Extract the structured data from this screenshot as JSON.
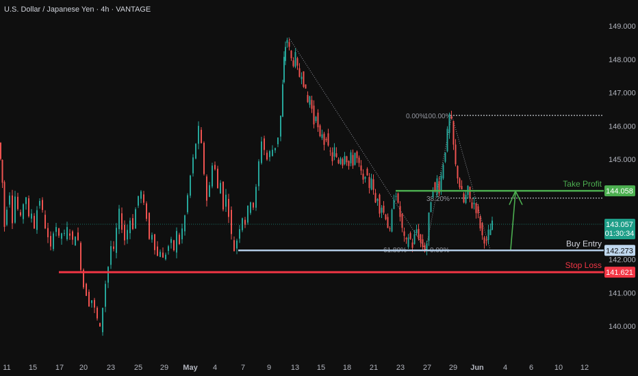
{
  "header": {
    "title": "U.S. Dollar / Japanese Yen · 4h · VANTAGE"
  },
  "colors": {
    "background": "#0f0f0f",
    "up": "#26a69a",
    "down": "#ef5350",
    "take_profit": "#4caf50",
    "buy_entry": "#b3cde8",
    "stop_loss": "#f23645",
    "current_price": "#1e9e88"
  },
  "chart_data": {
    "type": "candlestick",
    "title": "U.S. Dollar / Japanese Yen · 4h · VANTAGE",
    "y_axis": {
      "ticks": [
        "149.000",
        "148.000",
        "147.000",
        "146.000",
        "145.000",
        "142.000",
        "141.000",
        "140.000"
      ],
      "tick_values": [
        149,
        148,
        147,
        146,
        145,
        142,
        141,
        140
      ],
      "ylim": [
        139.0,
        149.6
      ]
    },
    "x_axis": {
      "ticks": [
        "11",
        "15",
        "17",
        "20",
        "23",
        "25",
        "29",
        "May",
        "4",
        "7",
        "9",
        "13",
        "15",
        "18",
        "21",
        "23",
        "27",
        "29",
        "Jun",
        "4",
        "6",
        "10",
        "12"
      ]
    },
    "levels": {
      "take_profit": {
        "label": "Take Profit",
        "value": 144.058,
        "tag": "144.058"
      },
      "buy_entry": {
        "label": "Buy Entry",
        "value": 142.273,
        "tag": "142.273"
      },
      "stop_loss": {
        "label": "Stop Loss",
        "value": 141.621,
        "tag": "141.621"
      },
      "current": {
        "value": 143.057,
        "tag": "143.057",
        "countdown": "01:30:34"
      }
    },
    "fibonacci": [
      {
        "label": "0.00%",
        "value": 146.32
      },
      {
        "label": "100.00%",
        "value": 146.32
      },
      {
        "label": "38.20%",
        "value": 143.84
      },
      {
        "label": "61.80%",
        "value": 142.3
      },
      {
        "label": "0.00%",
        "value": 142.3
      }
    ],
    "price_path": [
      [
        0,
        145.5
      ],
      [
        2,
        145.0
      ],
      [
        5,
        144.3
      ],
      [
        8,
        143.0
      ],
      [
        12,
        143.6
      ],
      [
        16,
        144.0
      ],
      [
        20,
        143.2
      ],
      [
        24,
        143.9
      ],
      [
        28,
        143.5
      ],
      [
        32,
        143.2
      ],
      [
        36,
        143.7
      ],
      [
        40,
        143.9
      ],
      [
        44,
        143.2
      ],
      [
        48,
        143.4
      ],
      [
        52,
        143.0
      ],
      [
        56,
        143.5
      ],
      [
        60,
        143.8
      ],
      [
        64,
        143.4
      ],
      [
        68,
        143.0
      ],
      [
        72,
        142.6
      ],
      [
        76,
        142.3
      ],
      [
        80,
        142.9
      ],
      [
        84,
        143.0
      ],
      [
        88,
        142.6
      ],
      [
        92,
        142.8
      ],
      [
        96,
        142.7
      ],
      [
        100,
        142.9
      ],
      [
        104,
        142.8
      ],
      [
        108,
        142.5
      ],
      [
        112,
        142.8
      ],
      [
        116,
        142.5
      ],
      [
        120,
        141.8
      ],
      [
        124,
        141.2
      ],
      [
        128,
        141.0
      ],
      [
        132,
        140.7
      ],
      [
        136,
        140.8
      ],
      [
        140,
        140.5
      ],
      [
        144,
        140.2
      ],
      [
        148,
        139.9
      ],
      [
        152,
        140.6
      ],
      [
        156,
        141.3
      ],
      [
        160,
        141.8
      ],
      [
        164,
        142.4
      ],
      [
        168,
        142.2
      ],
      [
        172,
        142.9
      ],
      [
        176,
        143.4
      ],
      [
        180,
        143.0
      ],
      [
        184,
        142.6
      ],
      [
        188,
        142.9
      ],
      [
        192,
        143.2
      ],
      [
        196,
        143.0
      ],
      [
        200,
        143.5
      ],
      [
        204,
        143.9
      ],
      [
        208,
        144.0
      ],
      [
        212,
        143.6
      ],
      [
        216,
        143.3
      ],
      [
        220,
        142.6
      ],
      [
        224,
        142.8
      ],
      [
        228,
        142.4
      ],
      [
        232,
        142.1
      ],
      [
        236,
        142.3
      ],
      [
        240,
        142.0
      ],
      [
        244,
        142.2
      ],
      [
        248,
        142.4
      ],
      [
        252,
        142.5
      ],
      [
        256,
        142.3
      ],
      [
        260,
        142.8
      ],
      [
        264,
        142.5
      ],
      [
        268,
        142.9
      ],
      [
        272,
        143.3
      ],
      [
        276,
        143.9
      ],
      [
        280,
        144.5
      ],
      [
        284,
        145.0
      ],
      [
        288,
        145.5
      ],
      [
        292,
        145.9
      ],
      [
        296,
        145.4
      ],
      [
        300,
        144.6
      ],
      [
        304,
        143.8
      ],
      [
        308,
        144.2
      ],
      [
        312,
        144.9
      ],
      [
        316,
        144.7
      ],
      [
        320,
        144.1
      ],
      [
        324,
        144.3
      ],
      [
        328,
        143.6
      ],
      [
        332,
        143.9
      ],
      [
        336,
        143.4
      ],
      [
        340,
        142.7
      ],
      [
        344,
        142.3
      ],
      [
        348,
        142.6
      ],
      [
        352,
        143.0
      ],
      [
        356,
        143.3
      ],
      [
        360,
        143.1
      ],
      [
        364,
        143.5
      ],
      [
        368,
        143.8
      ],
      [
        372,
        143.6
      ],
      [
        376,
        144.1
      ],
      [
        380,
        144.9
      ],
      [
        384,
        145.6
      ],
      [
        388,
        145.3
      ],
      [
        392,
        145.0
      ],
      [
        396,
        145.2
      ],
      [
        400,
        145.3
      ],
      [
        404,
        145.4
      ],
      [
        408,
        145.7
      ],
      [
        412,
        146.3
      ],
      [
        414,
        147.2
      ],
      [
        416,
        148.0
      ],
      [
        418,
        148.4
      ],
      [
        421,
        148.6
      ],
      [
        424,
        148.3
      ],
      [
        427,
        148.0
      ],
      [
        430,
        147.9
      ],
      [
        433,
        148.1
      ],
      [
        436,
        147.7
      ],
      [
        439,
        147.5
      ],
      [
        442,
        147.6
      ],
      [
        445,
        147.3
      ],
      [
        448,
        147.0
      ],
      [
        451,
        146.7
      ],
      [
        454,
        146.9
      ],
      [
        457,
        146.5
      ],
      [
        460,
        146.1
      ],
      [
        463,
        146.4
      ],
      [
        466,
        145.9
      ],
      [
        469,
        145.6
      ],
      [
        472,
        145.8
      ],
      [
        475,
        145.5
      ],
      [
        478,
        145.7
      ],
      [
        481,
        145.3
      ],
      [
        484,
        145.2
      ],
      [
        487,
        145.0
      ],
      [
        490,
        145.3
      ],
      [
        493,
        145.0
      ],
      [
        496,
        144.9
      ],
      [
        499,
        145.1
      ],
      [
        502,
        144.9
      ],
      [
        505,
        145.2
      ],
      [
        508,
        145.0
      ],
      [
        511,
        144.8
      ],
      [
        514,
        145.1
      ],
      [
        517,
        144.9
      ],
      [
        520,
        145.2
      ],
      [
        523,
        145.0
      ],
      [
        526,
        144.8
      ],
      [
        529,
        144.6
      ],
      [
        532,
        144.3
      ],
      [
        535,
        144.6
      ],
      [
        538,
        144.4
      ],
      [
        541,
        144.2
      ],
      [
        544,
        144.5
      ],
      [
        547,
        144.0
      ],
      [
        550,
        143.7
      ],
      [
        553,
        143.9
      ],
      [
        556,
        143.5
      ],
      [
        559,
        143.6
      ],
      [
        562,
        143.4
      ],
      [
        565,
        143.3
      ],
      [
        568,
        143.0
      ],
      [
        571,
        142.8
      ],
      [
        574,
        143.4
      ],
      [
        577,
        143.9
      ],
      [
        580,
        144.0
      ],
      [
        583,
        143.6
      ],
      [
        586,
        143.3
      ],
      [
        589,
        142.9
      ],
      [
        592,
        142.6
      ],
      [
        595,
        142.5
      ],
      [
        598,
        142.7
      ],
      [
        601,
        142.6
      ],
      [
        604,
        142.4
      ],
      [
        607,
        142.7
      ],
      [
        610,
        142.9
      ],
      [
        613,
        142.7
      ],
      [
        616,
        142.5
      ],
      [
        619,
        142.4
      ],
      [
        622,
        142.3
      ],
      [
        625,
        142.5
      ],
      [
        628,
        143.3
      ],
      [
        631,
        143.8
      ],
      [
        634,
        144.2
      ],
      [
        637,
        144.0
      ],
      [
        640,
        144.4
      ],
      [
        643,
        144.1
      ],
      [
        646,
        144.5
      ],
      [
        649,
        144.9
      ],
      [
        652,
        145.3
      ],
      [
        655,
        145.8
      ],
      [
        658,
        146.3
      ],
      [
        661,
        146.1
      ],
      [
        664,
        145.4
      ],
      [
        667,
        144.8
      ],
      [
        670,
        144.5
      ],
      [
        673,
        144.2
      ],
      [
        676,
        144.0
      ],
      [
        679,
        143.7
      ],
      [
        682,
        143.9
      ],
      [
        685,
        144.1
      ],
      [
        688,
        143.8
      ],
      [
        691,
        143.6
      ],
      [
        694,
        143.7
      ],
      [
        697,
        143.5
      ],
      [
        700,
        143.3
      ],
      [
        703,
        143.0
      ],
      [
        706,
        142.7
      ],
      [
        709,
        142.6
      ],
      [
        712,
        142.5
      ],
      [
        715,
        142.8
      ],
      [
        718,
        142.9
      ],
      [
        720,
        143.06
      ]
    ]
  }
}
